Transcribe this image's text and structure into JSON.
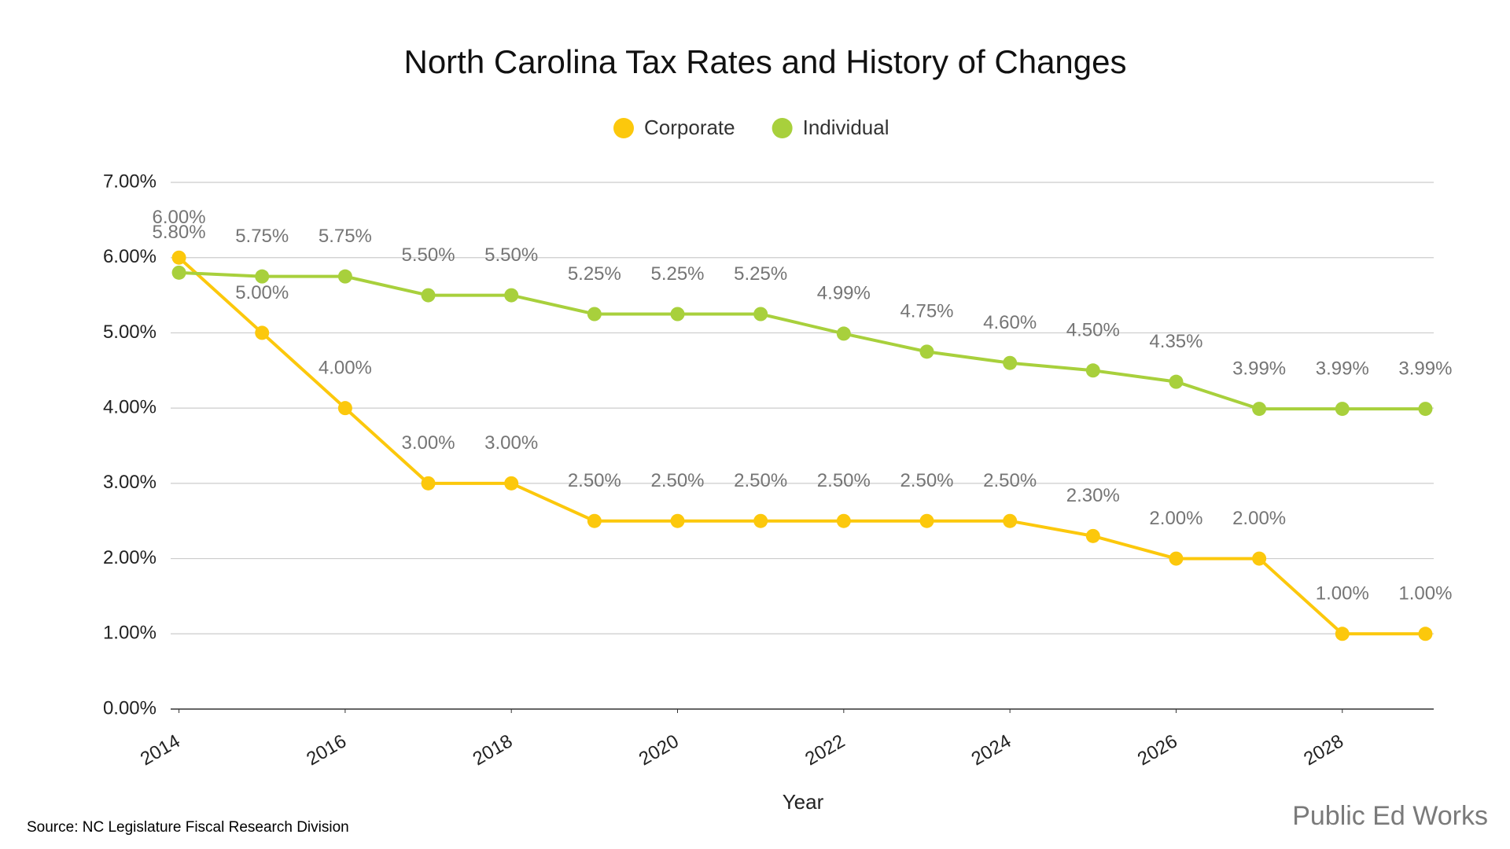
{
  "chart_data": {
    "type": "line",
    "title": "North Carolina Tax Rates and History of Changes",
    "x_label": "Year",
    "source": "Source: NC Legislature Fiscal Research Division",
    "logo": "Public Ed Works",
    "x": [
      2014,
      2015,
      2016,
      2017,
      2018,
      2019,
      2020,
      2021,
      2022,
      2023,
      2024,
      2025,
      2026,
      2027,
      2028,
      2029
    ],
    "series": [
      {
        "name": "Corporate",
        "color": "#fcc80c",
        "values": [
          6,
          5,
          4,
          3,
          3,
          2.5,
          2.5,
          2.5,
          2.5,
          2.5,
          2.5,
          2.3,
          2,
          2,
          1,
          1
        ],
        "value_labels": [
          "6.00%",
          "5.00%",
          "4.00%",
          "3.00%",
          "3.00%",
          "2.50%",
          "2.50%",
          "2.50%",
          "2.50%",
          "2.50%",
          "2.50%",
          "2.30%",
          "2.00%",
          "2.00%",
          "1.00%",
          "1.00%"
        ]
      },
      {
        "name": "Individual",
        "color": "#a8d03c",
        "values": [
          5.8,
          5.75,
          5.75,
          5.5,
          5.5,
          5.25,
          5.25,
          5.25,
          4.99,
          4.75,
          4.6,
          4.5,
          4.35,
          3.99,
          3.99,
          3.99
        ],
        "value_labels": [
          "5.80%",
          "5.75%",
          "5.75%",
          "5.50%",
          "5.50%",
          "5.25%",
          "5.25%",
          "5.25%",
          "4.99%",
          "4.75%",
          "4.60%",
          "4.50%",
          "4.35%",
          "3.99%",
          "3.99%",
          "3.99%"
        ]
      }
    ],
    "xlim": [
      2013.9,
      2029.1
    ],
    "xticks": [
      2014,
      2016,
      2018,
      2020,
      2022,
      2024,
      2026,
      2028
    ],
    "ylim": [
      0,
      7
    ],
    "yticks": [
      {
        "value": 0,
        "label": "0.00%"
      },
      {
        "value": 1,
        "label": "1.00%"
      },
      {
        "value": 2,
        "label": "2.00%"
      },
      {
        "value": 3,
        "label": "3.00%"
      },
      {
        "value": 4,
        "label": "4.00%"
      },
      {
        "value": 5,
        "label": "5.00%"
      },
      {
        "value": 6,
        "label": "6.00%"
      },
      {
        "value": 7,
        "label": "7.00%"
      }
    ],
    "grid": true,
    "legend": "top"
  }
}
